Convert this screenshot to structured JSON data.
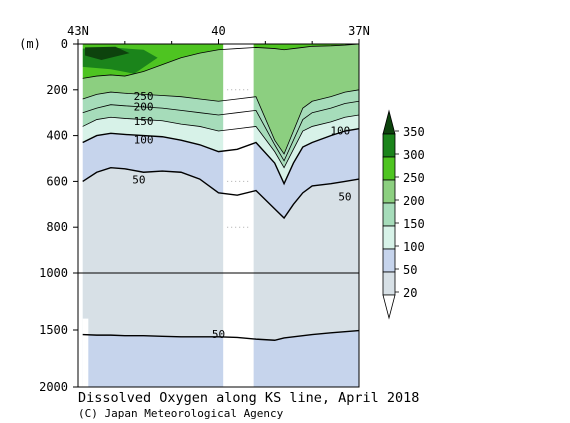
{
  "chart_data": {
    "type": "heatmap",
    "title": "Dissolved Oxygen along KS line, April 2018",
    "credit": "(C) Japan Meteorological Agency",
    "x_axis": {
      "top_tick_labels": [
        "43N",
        "40",
        "37N"
      ],
      "tick_latitudes": [
        43,
        40,
        37
      ],
      "range": [
        43,
        37
      ]
    },
    "y_axis": {
      "unit_label": "(m)",
      "tick_labels": [
        "0",
        "200",
        "400",
        "600",
        "800",
        "1000",
        "1500",
        "2000"
      ],
      "tick_depths": [
        0,
        200,
        400,
        600,
        800,
        1000,
        1500,
        2000
      ],
      "range": [
        0,
        2000
      ],
      "scale": "piecewise-linear (0-1000 m expanded, 1000-2000 m compressed)"
    },
    "colorbar": {
      "labels": [
        "350",
        "300",
        "250",
        "200",
        "150",
        "100",
        "50",
        "20"
      ],
      "boundaries": [
        20,
        50,
        100,
        150,
        200,
        250,
        300,
        350
      ],
      "colors": [
        "#ffffff",
        "#d7e0e6",
        "#c6d4ec",
        "#d7f2e8",
        "#a6dcba",
        "#8ccf80",
        "#4ec421",
        "#1b841b",
        "#0d430d"
      ]
    },
    "contour_labels": [
      {
        "text": "250",
        "lat": 41.6,
        "depth": 240
      },
      {
        "text": "200",
        "lat": 41.6,
        "depth": 285
      },
      {
        "text": "150",
        "lat": 41.6,
        "depth": 350
      },
      {
        "text": "100",
        "lat": 41.6,
        "depth": 430
      },
      {
        "text": "50",
        "lat": 41.7,
        "depth": 605
      },
      {
        "text": "100",
        "lat": 37.4,
        "depth": 390
      },
      {
        "text": "50",
        "lat": 37.3,
        "depth": 680
      },
      {
        "text": "50",
        "lat": 40.0,
        "depth": 1560
      }
    ],
    "data_gap": {
      "lat_from": 39.9,
      "lat_to": 39.25
    },
    "left_limit_note": "data begins at ~42.9N",
    "fields": [
      {
        "name": "region_below_20",
        "range": "<20",
        "lat": [
          42.9,
          42.7
        ],
        "depth": [
          1400,
          2000
        ]
      },
      {
        "name": "deep_water",
        "range": "20-50",
        "lat": [
          42.9,
          37
        ],
        "depth": [
          700,
          1540
        ]
      },
      {
        "name": "deep_bottom",
        "range": "50-100",
        "lat": [
          42.9,
          37
        ],
        "depth": [
          1540,
          2000
        ]
      },
      {
        "name": "intermediate",
        "range": "50-100",
        "lat": [
          42.9,
          37
        ],
        "depth": [
          420,
          650
        ]
      },
      {
        "name": "upper_thermocline",
        "range": "100-250",
        "lat": [
          42.9,
          37
        ],
        "depth": [
          170,
          430
        ]
      },
      {
        "name": "surface_green",
        "range": "250-300",
        "lat": [
          42.9,
          37
        ],
        "depth": [
          0,
          200
        ]
      },
      {
        "name": "surface_max",
        "range": "300-350+",
        "lat": [
          42.9,
          41.3
        ],
        "depth": [
          0,
          150
        ]
      }
    ]
  }
}
